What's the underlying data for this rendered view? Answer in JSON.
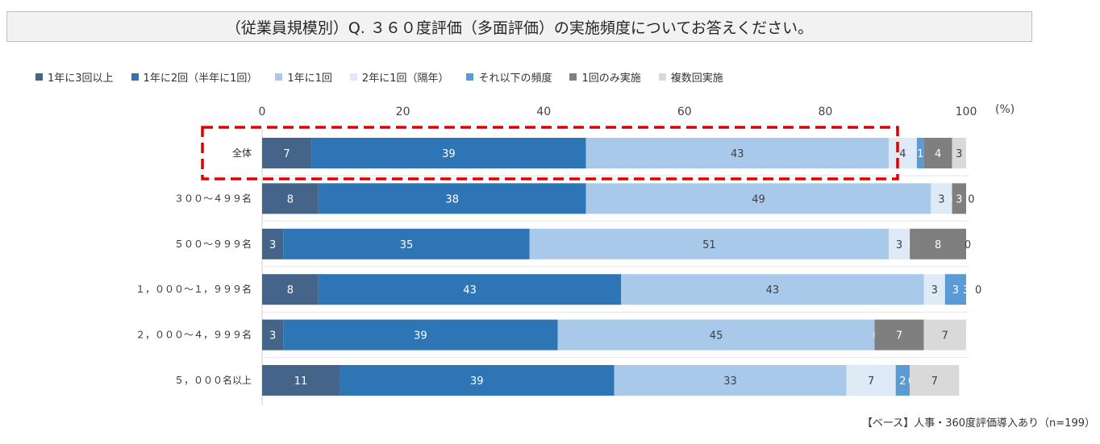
{
  "title": "（従業員規模別）Q. ３６０度評価（多面評価）の実施頻度についてお答えください。",
  "unit_label": "(%)",
  "footnote": "【ベース】人事・360度評価導入あり（n=199）",
  "colors": [
    "#44648a",
    "#2e75b6",
    "#a9c9ea",
    "#deebf7",
    "#5b9bd5",
    "#7f7f7f",
    "#d9d9d9"
  ],
  "highlight_color": "#e00000",
  "chart_data": {
    "type": "bar",
    "orientation": "horizontal",
    "stacked": true,
    "xlim": [
      0,
      100
    ],
    "xticks": [
      0,
      20,
      40,
      60,
      80,
      100
    ],
    "categories": [
      "全体",
      "３００～４９９名",
      "５００～９９９名",
      "１，０００～１，９９９名",
      "２，０００～４，９９９名",
      "５，０００名以上"
    ],
    "series": [
      {
        "name": "1年に3回以上",
        "values": [
          7,
          8,
          3,
          8,
          3,
          11
        ]
      },
      {
        "name": "1年に2回（半年に1回）",
        "values": [
          39,
          38,
          35,
          43,
          39,
          39
        ]
      },
      {
        "name": "1年に1回",
        "values": [
          43,
          49,
          51,
          43,
          45,
          33
        ]
      },
      {
        "name": "2年に1回（隔年）",
        "values": [
          4,
          3,
          3,
          3,
          0,
          7
        ]
      },
      {
        "name": "それ以下の頻度",
        "values": [
          1,
          0,
          0,
          3,
          0,
          2
        ]
      },
      {
        "name": "1回のみ実施",
        "values": [
          4,
          3,
          8,
          3,
          7,
          0
        ]
      },
      {
        "name": "複数回実施",
        "values": [
          3,
          0,
          0,
          0,
          7,
          7
        ]
      }
    ],
    "highlighted_category": "全体"
  }
}
